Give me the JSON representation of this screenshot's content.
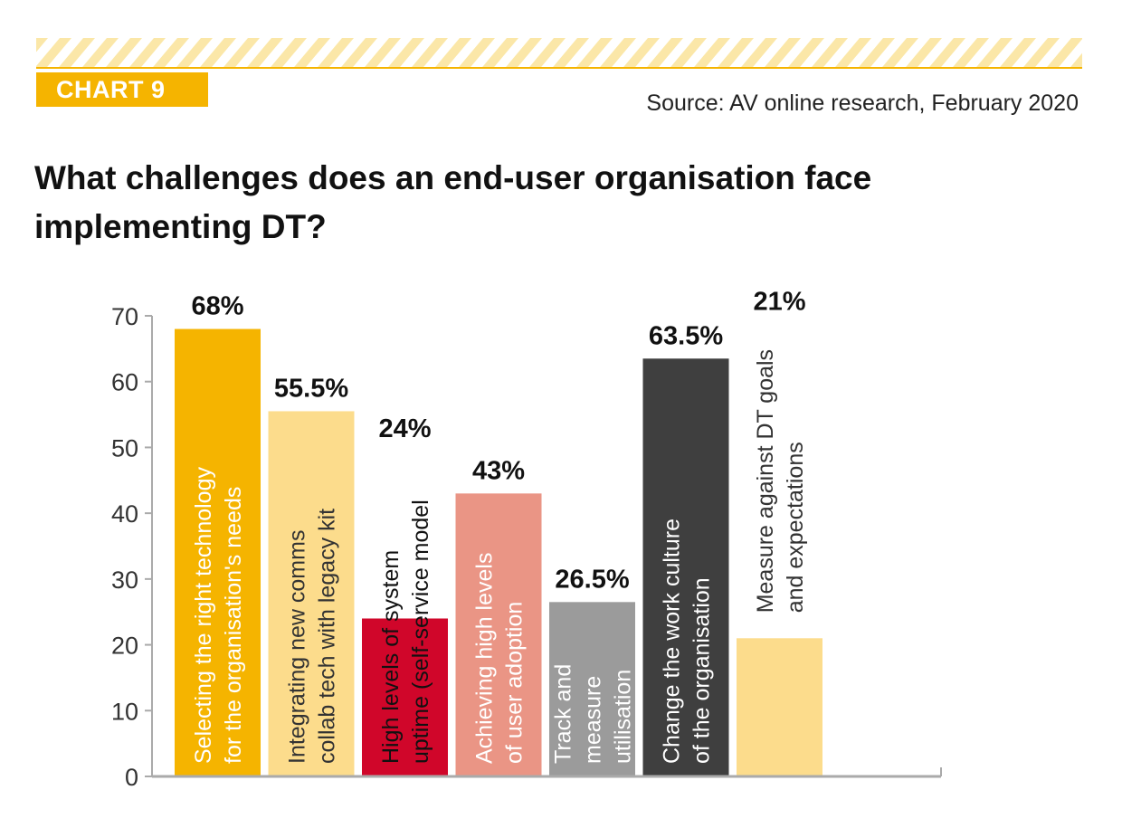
{
  "header": {
    "chart_tag": "CHART 9",
    "source": "Source: AV online research, February 2020",
    "title": "What challenges does an end-user organisation face implementing DT?"
  },
  "colors": {
    "accent": "#f5b400",
    "hatch": "#fbe7a8",
    "axis": "#aaaaaa"
  },
  "chart_data": {
    "type": "bar",
    "title": "What challenges does an end-user organisation face implementing DT?",
    "xlabel": "",
    "ylabel": "",
    "ylim": [
      0,
      70
    ],
    "yticks": [
      0,
      10,
      20,
      30,
      40,
      50,
      60,
      70
    ],
    "grid": false,
    "categories": [
      "Selecting the right technology for the organisation's needs",
      "Integrating new comms collab tech with legacy kit",
      "High levels of system uptime (self-service model",
      "Achieving high levels of user adoption",
      "Track and measure utilisation",
      "Change the work culture of the organisation",
      "Measure against DT goals and expectations"
    ],
    "label_lines": [
      [
        "Selecting the right technology",
        "for the organisation's needs"
      ],
      [
        "Integrating new comms",
        "collab tech with legacy kit"
      ],
      [
        "High levels of system",
        "uptime (self-service model"
      ],
      [
        "Achieving high levels",
        "of user adoption"
      ],
      [
        "Track and",
        "measure",
        "utilisation"
      ],
      [
        "Change the work culture",
        "of the organisation"
      ],
      [
        "Measure against DT goals",
        "and expectations"
      ]
    ],
    "values": [
      68,
      55.5,
      24,
      43,
      26.5,
      63.5,
      21
    ],
    "value_labels": [
      "68%",
      "55.5%",
      "24%",
      "43%",
      "26.5%",
      "63.5%",
      "21%"
    ],
    "bar_colors": [
      "#f5b400",
      "#fcdc8c",
      "#d0062a",
      "#ea9585",
      "#9b9b9b",
      "#3f3f3f",
      "#fcdc8c"
    ],
    "label_colors": [
      "#ffffff",
      "#333333",
      "#111111",
      "#ffffff",
      "#ffffff",
      "#ffffff",
      "#333333"
    ],
    "label_inside": [
      true,
      true,
      true,
      true,
      true,
      true,
      false
    ],
    "value_label_above_text": [
      false,
      false,
      true,
      false,
      false,
      false,
      true
    ]
  }
}
